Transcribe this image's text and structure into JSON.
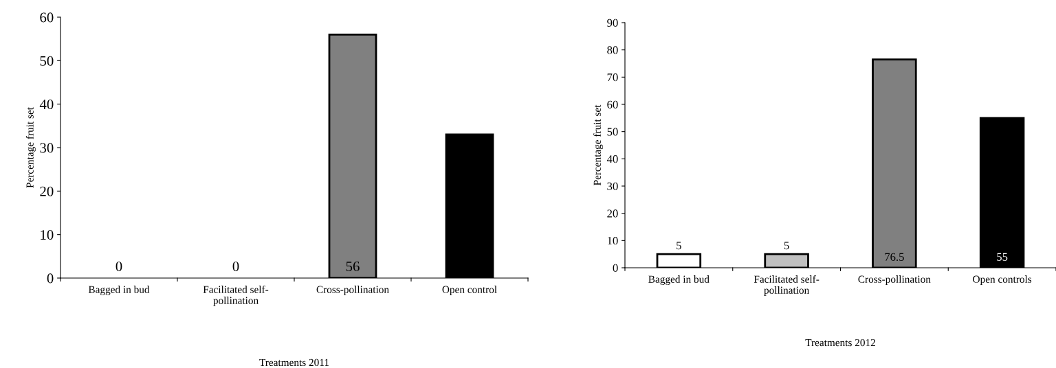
{
  "chart_data": [
    {
      "type": "bar",
      "xlabel": "Treatments 2011",
      "ylabel": "Percentage fruit set",
      "categories": [
        "Bagged in bud",
        "Facilitated self-\npollination",
        "Cross-pollination",
        "Open control"
      ],
      "values": [
        0,
        0,
        56,
        33
      ],
      "colors": [
        null,
        null,
        "#808080",
        "#000000"
      ],
      "value_labels": [
        "0",
        "0",
        "56",
        null
      ],
      "ylim": [
        0,
        60
      ],
      "yticks": [
        0,
        10,
        20,
        30,
        40,
        50,
        60
      ],
      "grid": false,
      "legend": false
    },
    {
      "type": "bar",
      "xlabel": "Treatments 2012",
      "ylabel": "Percentage fruit set",
      "categories": [
        "Bagged in bud",
        "Facilitated self-\npollination",
        "Cross-pollination",
        "Open controls"
      ],
      "values": [
        5,
        5,
        76.5,
        55
      ],
      "colors": [
        "#ffffff",
        "#c0c0c0",
        "#808080",
        "#000000"
      ],
      "data_labels": true,
      "ylim": [
        0,
        90
      ],
      "yticks": [
        0,
        10,
        20,
        30,
        40,
        50,
        60,
        70,
        80,
        90
      ],
      "grid": false,
      "legend": false
    }
  ]
}
